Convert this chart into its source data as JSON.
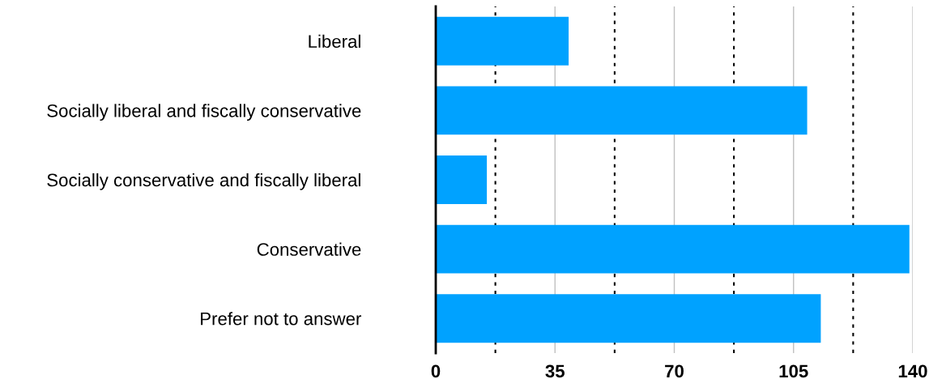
{
  "chart_data": {
    "type": "bar",
    "orientation": "horizontal",
    "categories": [
      "Liberal",
      "Socially liberal and fiscally conservative",
      "Socially conservative and fiscally liberal",
      "Conservative",
      "Prefer not to answer"
    ],
    "values": [
      39,
      109,
      15,
      139,
      113
    ],
    "color": "#00a2ff",
    "xlim": [
      0,
      140
    ],
    "xticks": [
      0,
      35,
      70,
      105,
      140
    ],
    "grid": "x",
    "ref_lines": [
      {
        "axis": "x",
        "value": 17.5,
        "color": "#000000",
        "line_style": "dotted"
      },
      {
        "axis": "x",
        "value": 52.5,
        "color": "#000000",
        "line_style": "dotted"
      },
      {
        "axis": "x",
        "value": 87.5,
        "color": "#000000",
        "line_style": "dotted"
      },
      {
        "axis": "x",
        "value": 122.5,
        "color": "#000000",
        "line_style": "dotted"
      }
    ]
  }
}
